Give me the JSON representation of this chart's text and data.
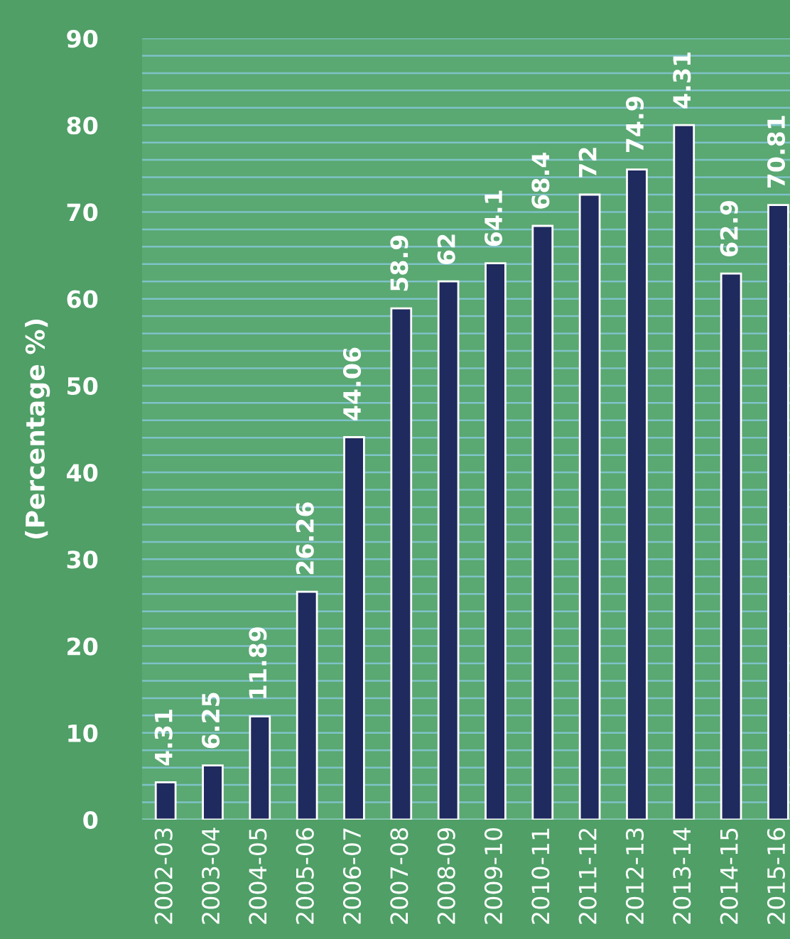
{
  "chart_data": {
    "type": "bar",
    "ylabel": "(Percentage %)",
    "categories": [
      "2002-03",
      "2003-04",
      "2004-05",
      "2005-06",
      "2006-07",
      "2007-08",
      "2008-09",
      "2009-10",
      "2010-11",
      "2011-12",
      "2012-13",
      "2013-14",
      "2014-15",
      "2015-16"
    ],
    "values": [
      4.31,
      6.25,
      11.89,
      26.26,
      44.06,
      58.9,
      62,
      64.1,
      68.4,
      72,
      74.9,
      80,
      62.9,
      70.81
    ],
    "value_labels": [
      "4.31",
      "6.25",
      "11.89",
      "26.26",
      "44.06",
      "58.9",
      "62",
      "64.1",
      "68.4",
      "72",
      "74.9",
      null,
      "62.9",
      "70.81"
    ],
    "annotations": [
      {
        "text": "4.31",
        "x": "2013-14",
        "y": 80
      }
    ],
    "color": "#1f2a5e",
    "ylim": [
      0,
      90
    ],
    "yticks": [
      0,
      {
        "value": 2,
        "label": null
      },
      {
        "value": 4,
        "label": null
      },
      {
        "value": 6,
        "label": null
      },
      {
        "value": 8,
        "label": null
      },
      10,
      {
        "value": 12,
        "label": null
      },
      {
        "value": 14,
        "label": null
      },
      {
        "value": 16,
        "label": null
      },
      {
        "value": 18,
        "label": null
      },
      20,
      {
        "value": 22,
        "label": null
      },
      {
        "value": 24,
        "label": null
      },
      {
        "value": 26,
        "label": null
      },
      {
        "value": 28,
        "label": null
      },
      30,
      {
        "value": 32,
        "label": null
      },
      {
        "value": 34,
        "label": null
      },
      {
        "value": 36,
        "label": null
      },
      {
        "value": 38,
        "label": null
      },
      40,
      {
        "value": 42,
        "label": null
      },
      {
        "value": 44,
        "label": null
      },
      {
        "value": 46,
        "label": null
      },
      {
        "value": 48,
        "label": null
      },
      50,
      {
        "value": 52,
        "label": null
      },
      {
        "value": 54,
        "label": null
      },
      {
        "value": 56,
        "label": null
      },
      {
        "value": 58,
        "label": null
      },
      60,
      {
        "value": 62,
        "label": null
      },
      {
        "value": 64,
        "label": null
      },
      {
        "value": 66,
        "label": null
      },
      {
        "value": 68,
        "label": null
      },
      70,
      {
        "value": 72,
        "label": null
      },
      {
        "value": 74,
        "label": null
      },
      {
        "value": 76,
        "label": null
      },
      {
        "value": 78,
        "label": null
      },
      80,
      {
        "value": 82,
        "label": null
      },
      {
        "value": 84,
        "label": null
      },
      {
        "value": 86,
        "label": null
      },
      {
        "value": 88,
        "label": null
      },
      90
    ],
    "grid": "y"
  }
}
